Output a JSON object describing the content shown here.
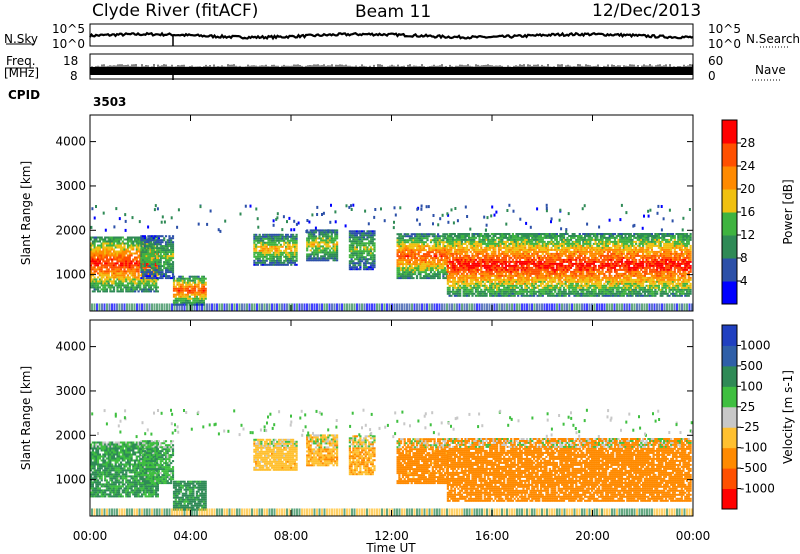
{
  "header": {
    "station": "Clyde River (fitACF)",
    "beam": "Beam 11",
    "date": "12/Dec/2013"
  },
  "noise_panel": {
    "left_label": "N.Sky",
    "right_label": "N.Search",
    "left_ticks": [
      "10^5",
      "10^0"
    ],
    "right_ticks": [
      "10^5",
      "10^0"
    ]
  },
  "freq_panel": {
    "left_label_line1": "Freq.",
    "left_label_line2": "[MHz]",
    "right_label": "Nave",
    "left_ticks": [
      "18",
      "8"
    ],
    "right_ticks": [
      "60",
      "0"
    ]
  },
  "cpid": {
    "label": "CPID",
    "value": "3503"
  },
  "chart_data": [
    {
      "type": "heatmap",
      "title": "",
      "quantity": "Power",
      "xlabel": "Time UT",
      "ylabel": "Slant Range [km]",
      "colorbar_label": "Power [dB]",
      "colorbar_ticks": [
        "4",
        "8",
        "12",
        "16",
        "20",
        "24",
        "28"
      ],
      "colorbar_colors": [
        "#0000ff",
        "#2c50a8",
        "#2f8a56",
        "#3fb340",
        "#f0c010",
        "#ff8a00",
        "#ff5000",
        "#ff0000"
      ],
      "x_ticks": [
        "00:00",
        "04:00",
        "08:00",
        "12:00",
        "16:00",
        "20:00",
        "00:00"
      ],
      "y_ticks": [
        "1000",
        "2000",
        "3000",
        "4000"
      ],
      "ylim": [
        180,
        4600
      ]
    },
    {
      "type": "heatmap",
      "title": "",
      "quantity": "Velocity",
      "xlabel": "Time UT",
      "ylabel": "Slant Range [km]",
      "colorbar_label": "Velocity [m s-1]",
      "colorbar_ticks": [
        "1000",
        "500",
        "100",
        "25",
        "-25",
        "-100",
        "-500",
        "-1000"
      ],
      "colorbar_colors": [
        "#2040c0",
        "#2f5fa8",
        "#2f8a56",
        "#3fbf40",
        "#c8c8c8",
        "#ffc030",
        "#ff8a00",
        "#ff5000",
        "#ff0000"
      ],
      "x_ticks": [
        "00:00",
        "04:00",
        "08:00",
        "12:00",
        "16:00",
        "20:00",
        "00:00"
      ],
      "y_ticks": [
        "1000",
        "2000",
        "3000",
        "4000"
      ],
      "ylim": [
        180,
        4600
      ],
      "xlabel_text": "Time UT"
    }
  ]
}
